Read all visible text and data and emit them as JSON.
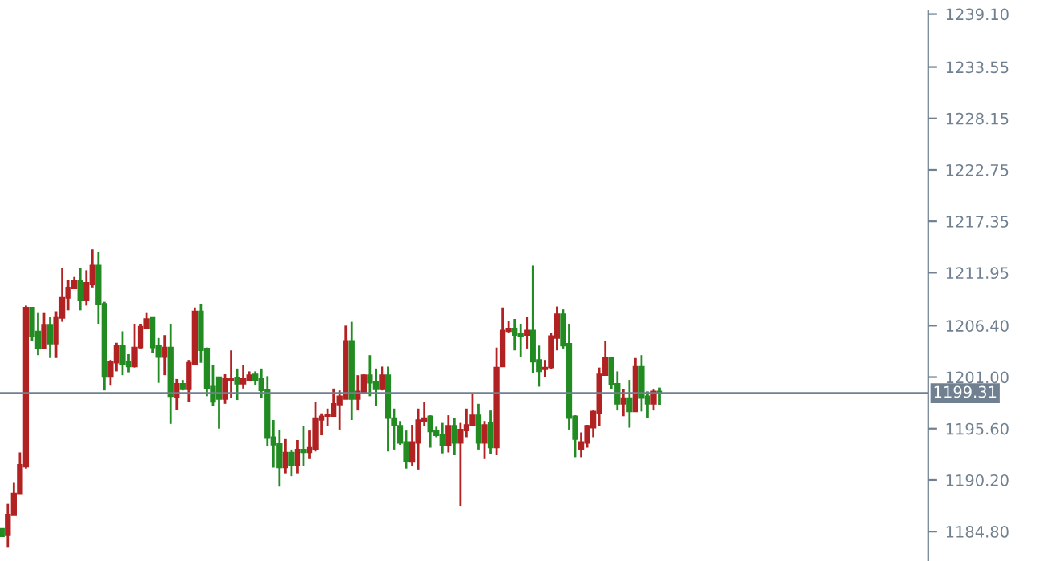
{
  "chart_data": {
    "type": "candlestick",
    "categories": [
      null,
      null,
      null,
      null,
      null,
      null,
      null,
      null,
      null,
      null,
      null,
      null,
      null,
      null,
      null,
      null,
      null,
      null,
      null,
      null,
      null,
      null,
      null,
      null,
      null,
      null,
      null,
      null,
      null,
      null,
      null,
      null,
      null,
      null,
      null,
      null,
      null,
      null,
      null,
      null,
      null,
      null,
      null,
      null,
      null,
      null,
      null,
      null,
      null,
      null,
      null,
      null,
      null,
      null,
      null,
      null,
      null,
      null,
      null,
      null,
      null,
      null,
      null,
      null,
      null,
      null,
      null,
      null,
      null,
      null,
      null,
      null,
      null,
      null,
      null,
      null,
      null,
      null,
      null,
      null,
      null,
      null,
      null,
      null,
      null,
      null,
      null,
      null,
      null,
      null,
      null,
      null,
      null,
      null,
      null,
      null,
      null,
      null,
      null,
      null,
      null,
      null,
      null,
      null,
      null,
      null,
      null,
      null,
      null,
      null,
      null,
      null,
      null,
      null,
      null,
      null,
      null,
      null,
      null,
      null,
      null,
      null,
      null,
      null,
      null,
      null,
      null,
      null,
      null,
      null,
      null,
      null,
      null,
      null,
      null,
      null,
      null,
      null,
      null,
      null,
      null,
      null,
      null,
      null,
      null,
      null,
      null,
      null,
      null,
      null,
      null,
      null,
      null,
      null
    ],
    "ohlc": [
      [
        1185.1,
        1185.1,
        1184.3,
        1184.3
      ],
      [
        1184.4,
        1187.7,
        1183.1,
        1186.6
      ],
      [
        1186.5,
        1189.9,
        1186.5,
        1188.8
      ],
      [
        1188.7,
        1193.1,
        1188.7,
        1191.8
      ],
      [
        1191.6,
        1208.5,
        1191.4,
        1208.3
      ],
      [
        1208.3,
        1208.3,
        1204.8,
        1205.3
      ],
      [
        1205.8,
        1207.8,
        1203.3,
        1204.0
      ],
      [
        1204.0,
        1207.8,
        1204.0,
        1206.5
      ],
      [
        1206.5,
        1207.3,
        1203.0,
        1204.5
      ],
      [
        1204.5,
        1207.9,
        1203.0,
        1207.3
      ],
      [
        1207.2,
        1212.4,
        1206.8,
        1209.4
      ],
      [
        1209.3,
        1211.2,
        1208.0,
        1210.4
      ],
      [
        1210.3,
        1211.5,
        1210.3,
        1211.1
      ],
      [
        1211.1,
        1212.4,
        1208.0,
        1209.1
      ],
      [
        1209.1,
        1212.2,
        1208.5,
        1210.9
      ],
      [
        1210.7,
        1214.4,
        1210.4,
        1212.7
      ],
      [
        1212.7,
        1214.1,
        1206.6,
        1208.6
      ],
      [
        1208.7,
        1208.9,
        1199.6,
        1201.0
      ],
      [
        1201.0,
        1202.8,
        1200.1,
        1202.6
      ],
      [
        1202.5,
        1204.6,
        1201.6,
        1204.3
      ],
      [
        1204.3,
        1205.8,
        1201.2,
        1202.3
      ],
      [
        1202.6,
        1203.4,
        1201.5,
        1202.1
      ],
      [
        1202.1,
        1206.6,
        1202.0,
        1204.1
      ],
      [
        1204.1,
        1206.6,
        1204.0,
        1206.3
      ],
      [
        1206.1,
        1207.8,
        1206.1,
        1207.1
      ],
      [
        1207.3,
        1207.3,
        1203.5,
        1204.1
      ],
      [
        1204.3,
        1205.1,
        1200.4,
        1203.1
      ],
      [
        1203.1,
        1205.4,
        1201.2,
        1204.1
      ],
      [
        1204.1,
        1206.6,
        1196.1,
        1199.0
      ],
      [
        1198.9,
        1200.8,
        1197.6,
        1200.3
      ],
      [
        1200.3,
        1200.7,
        1199.6,
        1199.7
      ],
      [
        1199.7,
        1202.8,
        1198.4,
        1202.5
      ],
      [
        1202.3,
        1208.3,
        1202.3,
        1207.9
      ],
      [
        1207.9,
        1208.7,
        1202.5,
        1203.8
      ],
      [
        1204.0,
        1204.1,
        1199.0,
        1199.8
      ],
      [
        1200.0,
        1202.3,
        1198.0,
        1198.4
      ],
      [
        1201.0,
        1201.0,
        1195.6,
        1198.7
      ],
      [
        1198.7,
        1201.3,
        1198.2,
        1200.8
      ],
      [
        1200.7,
        1203.8,
        1198.8,
        1200.8
      ],
      [
        1200.9,
        1201.9,
        1198.6,
        1200.3
      ],
      [
        1200.3,
        1202.3,
        1199.8,
        1200.8
      ],
      [
        1200.7,
        1201.6,
        1200.7,
        1201.2
      ],
      [
        1201.3,
        1201.6,
        1200.2,
        1200.7
      ],
      [
        1200.8,
        1201.9,
        1198.8,
        1199.6
      ],
      [
        1199.7,
        1201.1,
        1193.8,
        1194.6
      ],
      [
        1194.7,
        1196.5,
        1191.5,
        1193.9
      ],
      [
        1194.0,
        1195.5,
        1189.5,
        1191.5
      ],
      [
        1191.5,
        1194.5,
        1190.9,
        1193.1
      ],
      [
        1193.1,
        1193.4,
        1190.6,
        1191.7
      ],
      [
        1191.7,
        1194.4,
        1190.9,
        1193.4
      ],
      [
        1193.4,
        1195.9,
        1191.7,
        1193.1
      ],
      [
        1193.1,
        1195.4,
        1192.4,
        1193.6
      ],
      [
        1193.4,
        1198.4,
        1193.2,
        1196.7
      ],
      [
        1196.5,
        1197.2,
        1194.9,
        1196.9
      ],
      [
        1196.9,
        1197.7,
        1195.9,
        1197.1
      ],
      [
        1196.9,
        1199.8,
        1196.9,
        1198.2
      ],
      [
        1198.1,
        1199.6,
        1195.5,
        1199.0
      ],
      [
        1198.7,
        1206.4,
        1198.7,
        1204.8
      ],
      [
        1204.8,
        1206.8,
        1196.5,
        1198.7
      ],
      [
        1198.7,
        1201.2,
        1197.5,
        1199.5
      ],
      [
        1199.4,
        1201.3,
        1199.4,
        1201.2
      ],
      [
        1201.2,
        1203.3,
        1199.0,
        1200.4
      ],
      [
        1200.5,
        1201.9,
        1198.0,
        1199.7
      ],
      [
        1199.7,
        1202.1,
        1199.6,
        1201.2
      ],
      [
        1201.2,
        1202.1,
        1193.2,
        1196.7
      ],
      [
        1196.7,
        1197.7,
        1193.4,
        1195.9
      ],
      [
        1195.9,
        1196.4,
        1193.9,
        1194.1
      ],
      [
        1194.2,
        1195.4,
        1191.4,
        1192.2
      ],
      [
        1192.1,
        1196.0,
        1191.7,
        1194.2
      ],
      [
        1194.1,
        1197.7,
        1191.3,
        1196.5
      ],
      [
        1196.4,
        1198.4,
        1195.9,
        1196.7
      ],
      [
        1196.9,
        1197.0,
        1193.6,
        1195.3
      ],
      [
        1195.4,
        1195.8,
        1194.7,
        1194.9
      ],
      [
        1195.0,
        1196.2,
        1193.0,
        1193.8
      ],
      [
        1193.8,
        1197.0,
        1193.1,
        1195.9
      ],
      [
        1195.9,
        1196.7,
        1192.8,
        1194.1
      ],
      [
        1194.1,
        1196.2,
        1187.5,
        1195.5
      ],
      [
        1195.4,
        1197.7,
        1194.7,
        1196.0
      ],
      [
        1195.9,
        1199.3,
        1195.9,
        1197.0
      ],
      [
        1197.0,
        1198.2,
        1193.4,
        1194.1
      ],
      [
        1194.1,
        1196.4,
        1192.4,
        1196.0
      ],
      [
        1196.2,
        1197.5,
        1192.9,
        1193.6
      ],
      [
        1193.6,
        1204.1,
        1192.8,
        1202.0
      ],
      [
        1202.1,
        1208.3,
        1202.1,
        1205.9
      ],
      [
        1205.8,
        1206.9,
        1205.6,
        1206.1
      ],
      [
        1206.1,
        1207.1,
        1203.8,
        1205.4
      ],
      [
        1205.6,
        1206.6,
        1203.1,
        1205.3
      ],
      [
        1205.4,
        1207.3,
        1204.0,
        1205.9
      ],
      [
        1205.9,
        1212.7,
        1201.4,
        1202.6
      ],
      [
        1202.8,
        1204.3,
        1200.0,
        1201.6
      ],
      [
        1201.8,
        1202.8,
        1201.0,
        1202.0
      ],
      [
        1202.0,
        1205.6,
        1201.8,
        1205.3
      ],
      [
        1205.1,
        1208.4,
        1203.8,
        1207.6
      ],
      [
        1207.6,
        1208.1,
        1204.0,
        1204.3
      ],
      [
        1204.5,
        1206.6,
        1195.5,
        1196.7
      ],
      [
        1196.9,
        1197.0,
        1192.6,
        1194.5
      ],
      [
        1193.4,
        1195.2,
        1192.6,
        1194.2
      ],
      [
        1194.1,
        1196.0,
        1193.6,
        1195.9
      ],
      [
        1195.7,
        1197.5,
        1194.7,
        1197.4
      ],
      [
        1197.2,
        1202.0,
        1195.9,
        1201.3
      ],
      [
        1201.2,
        1204.8,
        1201.2,
        1203.0
      ],
      [
        1203.0,
        1203.0,
        1199.7,
        1200.2
      ],
      [
        1200.3,
        1201.6,
        1197.5,
        1198.2
      ],
      [
        1198.2,
        1199.7,
        1196.9,
        1198.8
      ],
      [
        1198.8,
        1200.7,
        1195.7,
        1197.4
      ],
      [
        1197.4,
        1203.0,
        1197.4,
        1202.1
      ],
      [
        1202.1,
        1203.3,
        1197.4,
        1198.8
      ],
      [
        1199.0,
        1199.5,
        1196.7,
        1198.2
      ],
      [
        1198.2,
        1199.7,
        1197.5,
        1199.5
      ],
      [
        1199.5,
        1199.9,
        1198.1,
        1199.4
      ],
      null,
      null,
      null,
      null,
      null,
      null,
      null,
      null,
      null,
      null,
      null,
      null,
      null,
      null,
      null,
      null,
      null,
      null,
      null,
      null,
      null,
      null,
      null,
      null,
      null,
      null,
      null,
      null,
      null,
      null,
      null,
      null,
      null,
      null,
      null,
      null,
      null,
      null,
      null,
      null,
      null,
      null,
      null,
      null
    ],
    "colors": [
      "#228b22",
      "#b22222",
      "#b22222",
      "#b22222",
      "#b22222",
      "#228b22",
      "#228b22",
      "#b22222",
      "#228b22",
      "#b22222",
      "#b22222",
      "#b22222",
      "#b22222",
      "#228b22",
      "#b22222",
      "#b22222",
      "#228b22",
      "#228b22",
      "#b22222",
      "#b22222",
      "#228b22",
      "#228b22",
      "#b22222",
      "#b22222",
      "#b22222",
      "#228b22",
      "#228b22",
      "#b22222",
      "#228b22",
      "#b22222",
      "#228b22",
      "#b22222",
      "#b22222",
      "#228b22",
      "#228b22",
      "#228b22",
      "#228b22",
      "#b22222",
      "#b22222",
      "#228b22",
      "#b22222",
      "#b22222",
      "#228b22",
      "#228b22",
      "#228b22",
      "#228b22",
      "#228b22",
      "#b22222",
      "#228b22",
      "#b22222",
      "#228b22",
      "#b22222",
      "#b22222",
      "#b22222",
      "#b22222",
      "#b22222",
      "#b22222",
      "#b22222",
      "#228b22",
      "#b22222",
      "#b22222",
      "#228b22",
      "#228b22",
      "#b22222",
      "#228b22",
      "#228b22",
      "#228b22",
      "#228b22",
      "#b22222",
      "#b22222",
      "#b22222",
      "#228b22",
      "#228b22",
      "#228b22",
      "#b22222",
      "#228b22",
      "#b22222",
      "#b22222",
      "#b22222",
      "#228b22",
      "#b22222",
      "#228b22",
      "#b22222",
      "#b22222",
      "#b22222",
      "#228b22",
      "#228b22",
      "#b22222",
      "#228b22",
      "#228b22",
      "#b22222",
      "#b22222",
      "#b22222",
      "#228b22",
      "#228b22",
      "#228b22",
      "#b22222",
      "#b22222",
      "#b22222",
      "#b22222",
      "#b22222",
      "#228b22",
      "#228b22",
      "#b22222",
      "#228b22",
      "#b22222",
      "#228b22",
      "#228b22",
      "#b22222",
      "#228b22",
      null,
      null,
      null,
      null,
      null,
      null,
      null,
      null,
      null,
      null,
      null,
      null,
      null,
      null,
      null,
      null,
      null,
      null,
      null,
      null,
      null,
      null,
      null,
      null,
      null,
      null,
      null,
      null,
      null,
      null,
      null,
      null,
      null,
      null,
      null,
      null,
      null,
      null,
      null,
      null,
      null,
      null,
      null,
      null
    ],
    "ylim": [
      1181.7,
      1239.4
    ],
    "yticks": [
      {
        "value": 1184.8,
        "label": "1184.80"
      },
      {
        "value": 1190.2,
        "label": "1190.20"
      },
      {
        "value": 1195.6,
        "label": "1195.60"
      },
      {
        "value": 1201.0,
        "label": "1201.00"
      },
      {
        "value": 1206.4,
        "label": "1206.40"
      },
      {
        "value": 1211.95,
        "label": "1211.95"
      },
      {
        "value": 1217.35,
        "label": "1217.35"
      },
      {
        "value": 1222.75,
        "label": "1222.75"
      },
      {
        "value": 1228.15,
        "label": "1228.15"
      },
      {
        "value": 1233.55,
        "label": "1233.55"
      },
      {
        "value": 1239.1,
        "label": "1239.10"
      }
    ],
    "ref_lines": [
      {
        "axis": "y",
        "value": 1199.31,
        "label": "1199.31",
        "color": "#708090",
        "line_style": "solid"
      }
    ],
    "grid": false,
    "tick_labels": "y"
  }
}
